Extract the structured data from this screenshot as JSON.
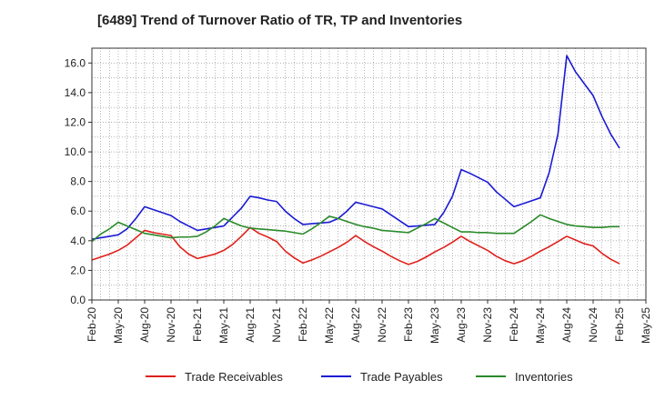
{
  "chart_data": {
    "type": "line",
    "title": "[6489]  Trend of Turnover Ratio of TR, TP and Inventories",
    "xlabel": "",
    "ylabel": "",
    "ylim": [
      0,
      17
    ],
    "yticks": [
      "0.0",
      "2.0",
      "4.0",
      "6.0",
      "8.0",
      "10.0",
      "12.0",
      "14.0",
      "16.0"
    ],
    "ytick_values": [
      0,
      2,
      4,
      6,
      8,
      10,
      12,
      14,
      16
    ],
    "xtick_labels": [
      "Feb-20",
      "May-20",
      "Aug-20",
      "Nov-20",
      "Feb-21",
      "May-21",
      "Aug-21",
      "Nov-21",
      "Feb-22",
      "May-22",
      "Aug-22",
      "Nov-22",
      "Feb-23",
      "May-23",
      "Aug-23",
      "Nov-23",
      "Feb-24",
      "May-24",
      "Aug-24",
      "Nov-24",
      "Feb-25",
      "May-25"
    ],
    "grid": true,
    "legend_position": "bottom",
    "x": [
      "Feb-20",
      "Mar-20",
      "Apr-20",
      "May-20",
      "Jun-20",
      "Jul-20",
      "Aug-20",
      "Sep-20",
      "Oct-20",
      "Nov-20",
      "Dec-20",
      "Jan-21",
      "Feb-21",
      "Mar-21",
      "Apr-21",
      "May-21",
      "Jun-21",
      "Jul-21",
      "Aug-21",
      "Sep-21",
      "Oct-21",
      "Nov-21",
      "Dec-21",
      "Jan-22",
      "Feb-22",
      "Mar-22",
      "Apr-22",
      "May-22",
      "Jun-22",
      "Jul-22",
      "Aug-22",
      "Sep-22",
      "Oct-22",
      "Nov-22",
      "Dec-22",
      "Jan-23",
      "Feb-23",
      "Mar-23",
      "Apr-23",
      "May-23",
      "Jun-23",
      "Jul-23",
      "Aug-23",
      "Sep-23",
      "Oct-23",
      "Nov-23",
      "Dec-23",
      "Jan-24",
      "Feb-24",
      "Mar-24",
      "Apr-24",
      "May-24",
      "Jun-24",
      "Jul-24",
      "Aug-24",
      "Sep-24",
      "Oct-24",
      "Nov-24",
      "Dec-24",
      "Jan-25",
      "Feb-25"
    ],
    "series": [
      {
        "name": "Trade Receivables",
        "color": "#e0201b",
        "values": [
          2.7,
          2.9,
          3.1,
          3.35,
          3.7,
          4.2,
          4.7,
          4.55,
          4.45,
          4.35,
          3.6,
          3.1,
          2.8,
          2.95,
          3.1,
          3.35,
          3.75,
          4.3,
          4.9,
          4.5,
          4.25,
          3.95,
          3.3,
          2.85,
          2.5,
          2.7,
          2.95,
          3.25,
          3.55,
          3.9,
          4.35,
          3.95,
          3.6,
          3.3,
          2.95,
          2.65,
          2.4,
          2.6,
          2.9,
          3.25,
          3.55,
          3.9,
          4.3,
          3.95,
          3.65,
          3.35,
          2.95,
          2.65,
          2.45,
          2.65,
          2.95,
          3.3,
          3.6,
          3.95,
          4.3,
          4.05,
          3.8,
          3.65,
          3.15,
          2.75,
          2.45
        ]
      },
      {
        "name": "Trade Payables",
        "color": "#1a1ad4",
        "values": [
          4.1,
          4.2,
          4.3,
          4.4,
          4.8,
          5.5,
          6.3,
          6.1,
          5.9,
          5.7,
          5.3,
          5.0,
          4.7,
          4.8,
          4.9,
          5.0,
          5.6,
          6.2,
          7.0,
          6.9,
          6.75,
          6.65,
          6.0,
          5.5,
          5.1,
          5.15,
          5.2,
          5.25,
          5.5,
          6.0,
          6.6,
          6.45,
          6.3,
          6.15,
          5.75,
          5.35,
          4.95,
          5.0,
          5.05,
          5.1,
          5.9,
          7.0,
          8.8,
          8.55,
          8.25,
          7.95,
          7.3,
          6.8,
          6.3,
          6.5,
          6.7,
          6.9,
          8.6,
          11.2,
          16.5,
          15.4,
          14.6,
          13.8,
          12.4,
          11.2,
          10.25
        ]
      },
      {
        "name": "Inventories",
        "color": "#2a8a2a",
        "values": [
          3.95,
          4.45,
          4.8,
          5.25,
          5.0,
          4.75,
          4.5,
          4.4,
          4.3,
          4.2,
          4.25,
          4.25,
          4.3,
          4.6,
          5.0,
          5.5,
          5.25,
          5.0,
          4.85,
          4.8,
          4.75,
          4.7,
          4.65,
          4.55,
          4.45,
          4.8,
          5.2,
          5.65,
          5.5,
          5.3,
          5.1,
          4.95,
          4.85,
          4.7,
          4.65,
          4.6,
          4.55,
          4.85,
          5.15,
          5.5,
          5.2,
          4.9,
          4.6,
          4.6,
          4.55,
          4.55,
          4.5,
          4.5,
          4.5,
          4.9,
          5.3,
          5.75,
          5.5,
          5.3,
          5.1,
          5.0,
          4.95,
          4.9,
          4.9,
          4.95,
          4.95
        ]
      }
    ]
  }
}
